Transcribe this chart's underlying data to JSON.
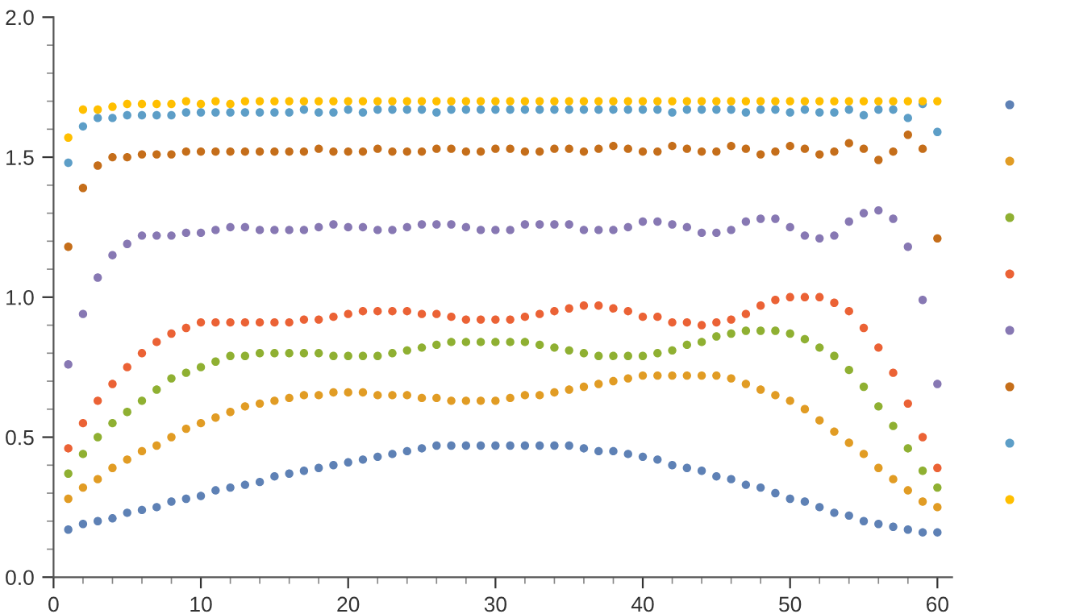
{
  "chart_data": {
    "type": "scatter",
    "marker": "circle",
    "grid": false,
    "x": [
      1,
      2,
      3,
      4,
      5,
      6,
      7,
      8,
      9,
      10,
      11,
      12,
      13,
      14,
      15,
      16,
      17,
      18,
      19,
      20,
      21,
      22,
      23,
      24,
      25,
      26,
      27,
      28,
      29,
      30,
      31,
      32,
      33,
      34,
      35,
      36,
      37,
      38,
      39,
      40,
      41,
      42,
      43,
      44,
      45,
      46,
      47,
      48,
      49,
      50,
      51,
      52,
      53,
      54,
      55,
      56,
      57,
      58,
      59,
      60
    ],
    "xlim": [
      0,
      61
    ],
    "xticks": [
      0,
      10,
      20,
      30,
      40,
      50,
      60
    ],
    "ylim": [
      0,
      2.0
    ],
    "yticks": [
      {
        "value": 0,
        "label": "0.0"
      },
      0.5,
      {
        "value": 1.0,
        "label": "1.0"
      },
      1.5,
      {
        "value": 2.0,
        "label": "2.0"
      }
    ],
    "series": [
      {
        "color": "#5e81b5",
        "values": [
          0.17,
          0.19,
          0.2,
          0.21,
          0.23,
          0.24,
          0.25,
          0.27,
          0.28,
          0.29,
          0.31,
          0.32,
          0.33,
          0.34,
          0.36,
          0.37,
          0.38,
          0.39,
          0.4,
          0.41,
          0.42,
          0.43,
          0.44,
          0.45,
          0.46,
          0.47,
          0.47,
          0.47,
          0.47,
          0.47,
          0.47,
          0.47,
          0.47,
          0.47,
          0.47,
          0.46,
          0.45,
          0.45,
          0.44,
          0.43,
          0.42,
          0.4,
          0.39,
          0.38,
          0.36,
          0.35,
          0.33,
          0.32,
          0.3,
          0.28,
          0.27,
          0.25,
          0.23,
          0.22,
          0.2,
          0.19,
          0.18,
          0.17,
          0.16,
          0.16
        ]
      },
      {
        "color": "#e19c24",
        "values": [
          0.28,
          0.32,
          0.35,
          0.39,
          0.42,
          0.45,
          0.47,
          0.5,
          0.53,
          0.55,
          0.57,
          0.59,
          0.61,
          0.62,
          0.63,
          0.64,
          0.65,
          0.65,
          0.66,
          0.66,
          0.66,
          0.65,
          0.65,
          0.65,
          0.64,
          0.64,
          0.63,
          0.63,
          0.63,
          0.63,
          0.64,
          0.65,
          0.65,
          0.66,
          0.67,
          0.68,
          0.69,
          0.7,
          0.71,
          0.72,
          0.72,
          0.72,
          0.72,
          0.72,
          0.72,
          0.71,
          0.69,
          0.67,
          0.65,
          0.63,
          0.6,
          0.56,
          0.52,
          0.48,
          0.44,
          0.39,
          0.35,
          0.31,
          0.27,
          0.25
        ]
      },
      {
        "color": "#8fb032",
        "values": [
          0.37,
          0.44,
          0.5,
          0.55,
          0.59,
          0.63,
          0.67,
          0.71,
          0.73,
          0.75,
          0.77,
          0.79,
          0.79,
          0.8,
          0.8,
          0.8,
          0.8,
          0.8,
          0.79,
          0.79,
          0.79,
          0.79,
          0.8,
          0.81,
          0.82,
          0.83,
          0.84,
          0.84,
          0.84,
          0.84,
          0.84,
          0.84,
          0.83,
          0.82,
          0.81,
          0.8,
          0.79,
          0.79,
          0.79,
          0.79,
          0.8,
          0.81,
          0.83,
          0.84,
          0.86,
          0.87,
          0.88,
          0.88,
          0.88,
          0.87,
          0.85,
          0.82,
          0.79,
          0.74,
          0.68,
          0.61,
          0.54,
          0.46,
          0.38,
          0.32
        ]
      },
      {
        "color": "#eb6235",
        "values": [
          0.46,
          0.55,
          0.63,
          0.69,
          0.75,
          0.8,
          0.84,
          0.87,
          0.89,
          0.91,
          0.91,
          0.91,
          0.91,
          0.91,
          0.91,
          0.91,
          0.92,
          0.92,
          0.93,
          0.94,
          0.95,
          0.95,
          0.95,
          0.95,
          0.94,
          0.94,
          0.93,
          0.92,
          0.92,
          0.92,
          0.92,
          0.93,
          0.94,
          0.95,
          0.96,
          0.97,
          0.97,
          0.96,
          0.95,
          0.93,
          0.93,
          0.91,
          0.91,
          0.9,
          0.91,
          0.92,
          0.94,
          0.97,
          0.99,
          1.0,
          1.0,
          1.0,
          0.98,
          0.95,
          0.89,
          0.82,
          0.73,
          0.62,
          0.5,
          0.39
        ]
      },
      {
        "color": "#8778b3",
        "values": [
          0.76,
          0.94,
          1.07,
          1.15,
          1.19,
          1.22,
          1.22,
          1.22,
          1.23,
          1.23,
          1.24,
          1.25,
          1.25,
          1.24,
          1.24,
          1.24,
          1.24,
          1.25,
          1.26,
          1.25,
          1.25,
          1.24,
          1.24,
          1.25,
          1.26,
          1.26,
          1.26,
          1.25,
          1.24,
          1.24,
          1.24,
          1.26,
          1.26,
          1.26,
          1.26,
          1.24,
          1.24,
          1.24,
          1.25,
          1.27,
          1.27,
          1.26,
          1.25,
          1.23,
          1.23,
          1.24,
          1.27,
          1.28,
          1.28,
          1.25,
          1.22,
          1.21,
          1.22,
          1.27,
          1.3,
          1.31,
          1.28,
          1.18,
          0.99,
          0.69
        ]
      },
      {
        "color": "#c56e1a",
        "values": [
          1.18,
          1.39,
          1.47,
          1.5,
          1.5,
          1.51,
          1.51,
          1.51,
          1.52,
          1.52,
          1.52,
          1.52,
          1.52,
          1.52,
          1.52,
          1.52,
          1.52,
          1.53,
          1.52,
          1.52,
          1.52,
          1.53,
          1.52,
          1.52,
          1.52,
          1.53,
          1.53,
          1.52,
          1.52,
          1.53,
          1.53,
          1.52,
          1.52,
          1.53,
          1.53,
          1.52,
          1.53,
          1.54,
          1.53,
          1.52,
          1.52,
          1.54,
          1.53,
          1.52,
          1.52,
          1.54,
          1.53,
          1.51,
          1.52,
          1.54,
          1.53,
          1.51,
          1.52,
          1.55,
          1.53,
          1.49,
          1.52,
          1.58,
          1.53,
          1.21
        ]
      },
      {
        "color": "#5d9ec7",
        "values": [
          1.48,
          1.61,
          1.64,
          1.64,
          1.65,
          1.65,
          1.65,
          1.65,
          1.66,
          1.66,
          1.66,
          1.66,
          1.66,
          1.66,
          1.66,
          1.66,
          1.67,
          1.66,
          1.66,
          1.67,
          1.66,
          1.67,
          1.67,
          1.67,
          1.67,
          1.66,
          1.67,
          1.67,
          1.67,
          1.67,
          1.67,
          1.67,
          1.67,
          1.67,
          1.67,
          1.67,
          1.67,
          1.67,
          1.67,
          1.67,
          1.67,
          1.66,
          1.67,
          1.67,
          1.67,
          1.67,
          1.66,
          1.67,
          1.67,
          1.66,
          1.67,
          1.66,
          1.66,
          1.67,
          1.65,
          1.67,
          1.67,
          1.64,
          1.69,
          1.59
        ]
      },
      {
        "color": "#ffbf00",
        "values": [
          1.57,
          1.67,
          1.67,
          1.68,
          1.69,
          1.69,
          1.69,
          1.69,
          1.7,
          1.69,
          1.7,
          1.69,
          1.7,
          1.7,
          1.7,
          1.7,
          1.7,
          1.7,
          1.7,
          1.7,
          1.7,
          1.7,
          1.7,
          1.7,
          1.7,
          1.7,
          1.7,
          1.7,
          1.7,
          1.7,
          1.7,
          1.7,
          1.7,
          1.7,
          1.7,
          1.7,
          1.7,
          1.7,
          1.7,
          1.7,
          1.7,
          1.7,
          1.7,
          1.7,
          1.7,
          1.7,
          1.7,
          1.7,
          1.7,
          1.7,
          1.7,
          1.7,
          1.7,
          1.7,
          1.7,
          1.7,
          1.7,
          1.7,
          1.7,
          1.7
        ]
      }
    ]
  }
}
